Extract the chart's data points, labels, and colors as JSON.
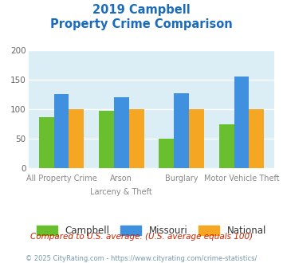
{
  "title_line1": "2019 Campbell",
  "title_line2": "Property Crime Comparison",
  "top_labels": [
    "",
    "Arson",
    "Burglary",
    ""
  ],
  "bottom_labels": [
    "All Property Crime",
    "Larceny & Theft",
    "",
    "Motor Vehicle Theft"
  ],
  "series": {
    "Campbell": [
      87,
      97,
      50,
      75
    ],
    "Missouri": [
      125,
      120,
      127,
      155
    ],
    "National": [
      100,
      100,
      100,
      100
    ]
  },
  "colors": {
    "Campbell": "#6abf2e",
    "Missouri": "#4090e0",
    "National": "#f5a623"
  },
  "ylim": [
    0,
    200
  ],
  "yticks": [
    0,
    50,
    100,
    150,
    200
  ],
  "title_color": "#1a6bbf",
  "plot_bg": "#dceef5",
  "grid_color": "#ffffff",
  "footer_text": "Compared to U.S. average. (U.S. average equals 100)",
  "credit_text": "© 2025 CityRating.com - https://www.cityrating.com/crime-statistics/",
  "bar_width": 0.25
}
